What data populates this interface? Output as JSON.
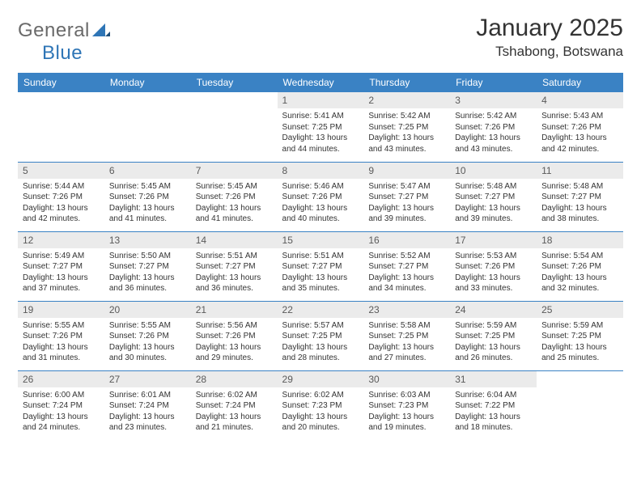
{
  "logo": {
    "text1": "General",
    "text2": "Blue"
  },
  "title": {
    "month": "January 2025",
    "location": "Tshabong, Botswana"
  },
  "style": {
    "header_bg": "#3a82c4",
    "header_fg": "#ffffff",
    "daynum_bg": "#ebebeb",
    "daynum_fg": "#5a5a5a",
    "border_color": "#3a82c4",
    "body_font_size": 10,
    "header_font_size": 12,
    "title_font_size": 30,
    "location_font_size": 17
  },
  "weekdays": [
    "Sunday",
    "Monday",
    "Tuesday",
    "Wednesday",
    "Thursday",
    "Friday",
    "Saturday"
  ],
  "weeks": [
    [
      null,
      null,
      null,
      {
        "d": "1",
        "sr": "5:41 AM",
        "ss": "7:25 PM",
        "dl1": "13 hours",
        "dl2": "and 44 minutes."
      },
      {
        "d": "2",
        "sr": "5:42 AM",
        "ss": "7:25 PM",
        "dl1": "13 hours",
        "dl2": "and 43 minutes."
      },
      {
        "d": "3",
        "sr": "5:42 AM",
        "ss": "7:26 PM",
        "dl1": "13 hours",
        "dl2": "and 43 minutes."
      },
      {
        "d": "4",
        "sr": "5:43 AM",
        "ss": "7:26 PM",
        "dl1": "13 hours",
        "dl2": "and 42 minutes."
      }
    ],
    [
      {
        "d": "5",
        "sr": "5:44 AM",
        "ss": "7:26 PM",
        "dl1": "13 hours",
        "dl2": "and 42 minutes."
      },
      {
        "d": "6",
        "sr": "5:45 AM",
        "ss": "7:26 PM",
        "dl1": "13 hours",
        "dl2": "and 41 minutes."
      },
      {
        "d": "7",
        "sr": "5:45 AM",
        "ss": "7:26 PM",
        "dl1": "13 hours",
        "dl2": "and 41 minutes."
      },
      {
        "d": "8",
        "sr": "5:46 AM",
        "ss": "7:26 PM",
        "dl1": "13 hours",
        "dl2": "and 40 minutes."
      },
      {
        "d": "9",
        "sr": "5:47 AM",
        "ss": "7:27 PM",
        "dl1": "13 hours",
        "dl2": "and 39 minutes."
      },
      {
        "d": "10",
        "sr": "5:48 AM",
        "ss": "7:27 PM",
        "dl1": "13 hours",
        "dl2": "and 39 minutes."
      },
      {
        "d": "11",
        "sr": "5:48 AM",
        "ss": "7:27 PM",
        "dl1": "13 hours",
        "dl2": "and 38 minutes."
      }
    ],
    [
      {
        "d": "12",
        "sr": "5:49 AM",
        "ss": "7:27 PM",
        "dl1": "13 hours",
        "dl2": "and 37 minutes."
      },
      {
        "d": "13",
        "sr": "5:50 AM",
        "ss": "7:27 PM",
        "dl1": "13 hours",
        "dl2": "and 36 minutes."
      },
      {
        "d": "14",
        "sr": "5:51 AM",
        "ss": "7:27 PM",
        "dl1": "13 hours",
        "dl2": "and 36 minutes."
      },
      {
        "d": "15",
        "sr": "5:51 AM",
        "ss": "7:27 PM",
        "dl1": "13 hours",
        "dl2": "and 35 minutes."
      },
      {
        "d": "16",
        "sr": "5:52 AM",
        "ss": "7:27 PM",
        "dl1": "13 hours",
        "dl2": "and 34 minutes."
      },
      {
        "d": "17",
        "sr": "5:53 AM",
        "ss": "7:26 PM",
        "dl1": "13 hours",
        "dl2": "and 33 minutes."
      },
      {
        "d": "18",
        "sr": "5:54 AM",
        "ss": "7:26 PM",
        "dl1": "13 hours",
        "dl2": "and 32 minutes."
      }
    ],
    [
      {
        "d": "19",
        "sr": "5:55 AM",
        "ss": "7:26 PM",
        "dl1": "13 hours",
        "dl2": "and 31 minutes."
      },
      {
        "d": "20",
        "sr": "5:55 AM",
        "ss": "7:26 PM",
        "dl1": "13 hours",
        "dl2": "and 30 minutes."
      },
      {
        "d": "21",
        "sr": "5:56 AM",
        "ss": "7:26 PM",
        "dl1": "13 hours",
        "dl2": "and 29 minutes."
      },
      {
        "d": "22",
        "sr": "5:57 AM",
        "ss": "7:25 PM",
        "dl1": "13 hours",
        "dl2": "and 28 minutes."
      },
      {
        "d": "23",
        "sr": "5:58 AM",
        "ss": "7:25 PM",
        "dl1": "13 hours",
        "dl2": "and 27 minutes."
      },
      {
        "d": "24",
        "sr": "5:59 AM",
        "ss": "7:25 PM",
        "dl1": "13 hours",
        "dl2": "and 26 minutes."
      },
      {
        "d": "25",
        "sr": "5:59 AM",
        "ss": "7:25 PM",
        "dl1": "13 hours",
        "dl2": "and 25 minutes."
      }
    ],
    [
      {
        "d": "26",
        "sr": "6:00 AM",
        "ss": "7:24 PM",
        "dl1": "13 hours",
        "dl2": "and 24 minutes."
      },
      {
        "d": "27",
        "sr": "6:01 AM",
        "ss": "7:24 PM",
        "dl1": "13 hours",
        "dl2": "and 23 minutes."
      },
      {
        "d": "28",
        "sr": "6:02 AM",
        "ss": "7:24 PM",
        "dl1": "13 hours",
        "dl2": "and 21 minutes."
      },
      {
        "d": "29",
        "sr": "6:02 AM",
        "ss": "7:23 PM",
        "dl1": "13 hours",
        "dl2": "and 20 minutes."
      },
      {
        "d": "30",
        "sr": "6:03 AM",
        "ss": "7:23 PM",
        "dl1": "13 hours",
        "dl2": "and 19 minutes."
      },
      {
        "d": "31",
        "sr": "6:04 AM",
        "ss": "7:22 PM",
        "dl1": "13 hours",
        "dl2": "and 18 minutes."
      },
      null
    ]
  ],
  "labels": {
    "sunrise": "Sunrise:",
    "sunset": "Sunset:",
    "daylight": "Daylight:"
  }
}
